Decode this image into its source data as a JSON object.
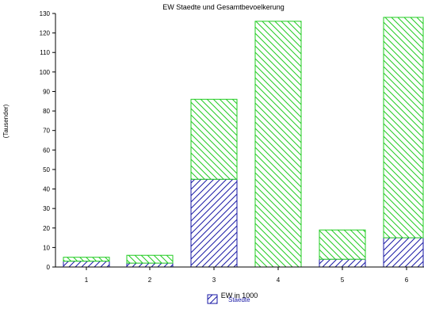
{
  "chart_data": {
    "type": "bar",
    "stacked": true,
    "title": "EW Staedte und Gesamtbevoelkerung",
    "xlabel": "EW in 1000",
    "ylabel": "(Tausender)",
    "categories": [
      "1",
      "2",
      "3",
      "4",
      "5",
      "6"
    ],
    "ylim": [
      0,
      130
    ],
    "yticks": [
      0,
      10,
      20,
      30,
      40,
      50,
      60,
      70,
      80,
      90,
      100,
      110,
      120,
      130
    ],
    "grid": false,
    "legend_position": "bottom",
    "series": [
      {
        "name": "Staedte",
        "values": [
          3,
          2,
          45,
          0,
          4,
          15
        ],
        "color": "#1a1aa6",
        "hatch": "forward-diagonal"
      },
      {
        "values": [
          2,
          4,
          41,
          126,
          15,
          113
        ],
        "color": "#22cc22",
        "hatch": "backward-diagonal"
      }
    ]
  }
}
